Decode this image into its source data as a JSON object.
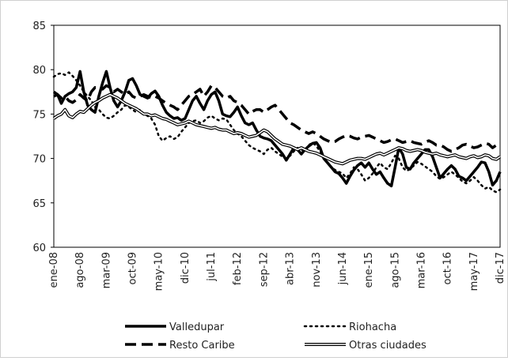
{
  "chart_data": {
    "type": "line",
    "categories": [
      "ene-08",
      null,
      null,
      null,
      null,
      null,
      null,
      "ago-08",
      null,
      null,
      null,
      null,
      null,
      null,
      "mar-09",
      null,
      null,
      null,
      null,
      null,
      null,
      "oct-09",
      null,
      null,
      null,
      null,
      null,
      null,
      "may-10",
      null,
      null,
      null,
      null,
      null,
      null,
      "dic-10",
      null,
      null,
      null,
      null,
      null,
      null,
      "jul-11",
      null,
      null,
      null,
      null,
      null,
      null,
      "feb-12",
      null,
      null,
      null,
      null,
      null,
      null,
      "sep-12",
      null,
      null,
      null,
      null,
      null,
      null,
      "abr-13",
      null,
      null,
      null,
      null,
      null,
      null,
      "nov-13",
      null,
      null,
      null,
      null,
      null,
      null,
      "jun-14",
      null,
      null,
      null,
      null,
      null,
      null,
      "ene-15",
      null,
      null,
      null,
      null,
      null,
      null,
      "ago-15",
      null,
      null,
      null,
      null,
      null,
      null,
      "mar-16",
      null,
      null,
      null,
      null,
      null,
      null,
      "oct-16",
      null,
      null,
      null,
      null,
      null,
      null,
      "may-17",
      null,
      null,
      null,
      null,
      null,
      null,
      "dic-17"
    ],
    "ylim": [
      60,
      85
    ],
    "yticks": [
      60,
      65,
      70,
      75,
      80,
      85
    ],
    "series": [
      {
        "name": "Valledupar",
        "color": "#000000",
        "style": "solid",
        "values": [
          77,
          77.2,
          76.2,
          77,
          77.3,
          77.5,
          78,
          79.8,
          77.5,
          76,
          75.5,
          75.2,
          77,
          78.5,
          79.8,
          78,
          76.5,
          75.8,
          76.5,
          77.5,
          78.8,
          79,
          78.2,
          77.2,
          77,
          76.8,
          77.3,
          77.6,
          77,
          76,
          75.2,
          74.8,
          74.5,
          74.6,
          74.3,
          74.5,
          75.5,
          76.5,
          77,
          76.2,
          75.5,
          76.5,
          77.2,
          77.5,
          76.5,
          75,
          74.8,
          74.7,
          75.2,
          75.8,
          74.8,
          74,
          73.8,
          74,
          73.2,
          72.5,
          72.3,
          72.2,
          72,
          71.5,
          71,
          70.5,
          69.8,
          70.5,
          71.2,
          71,
          70.5,
          71,
          71.4,
          71.7,
          71.8,
          71.2,
          70,
          69.5,
          69,
          68.5,
          68.3,
          67.8,
          67.2,
          68,
          68.7,
          69.2,
          69.5,
          69,
          69.5,
          68.8,
          68.2,
          68.5,
          67.8,
          67.2,
          66.9,
          69,
          71.2,
          70.5,
          69,
          68.8,
          69.5,
          70,
          70.5,
          71,
          71,
          70.2,
          69,
          67.8,
          68.3,
          68.8,
          69.2,
          68.8,
          68,
          67.8,
          67.5,
          68,
          68.5,
          69,
          69.6,
          69.5,
          68.5,
          67,
          67.5,
          68.5
        ]
      },
      {
        "name": "Riohacha",
        "color": "#000000",
        "style": "dotted",
        "values": [
          79.2,
          79.5,
          79.6,
          79.4,
          79.7,
          79.3,
          78.8,
          78.2,
          77.5,
          77,
          76.5,
          75.8,
          75.5,
          75,
          74.6,
          74.5,
          74.8,
          75.2,
          75.5,
          76,
          75.8,
          75.5,
          75.2,
          75.5,
          75,
          74.8,
          74.5,
          73.8,
          72.5,
          72,
          72.3,
          72.5,
          72.2,
          72.4,
          73,
          73.5,
          74,
          74.2,
          74.3,
          74,
          74.2,
          74.6,
          74.8,
          74.5,
          74.3,
          74.5,
          74.4,
          73.8,
          73.2,
          72.8,
          72.5,
          72,
          71.5,
          71.2,
          71,
          70.8,
          70.5,
          71,
          71.2,
          70.8,
          70.5,
          70.2,
          70,
          70.3,
          70.8,
          71.2,
          71,
          70.8,
          71.5,
          71.8,
          71.4,
          70.8,
          70.2,
          69.5,
          69,
          68.7,
          68.5,
          68.3,
          67.8,
          68.3,
          69,
          68.8,
          68.2,
          67.5,
          67.8,
          68.3,
          69,
          69.5,
          69,
          68.8,
          69.5,
          70.3,
          70,
          69,
          68.6,
          68.8,
          69.2,
          69.6,
          69.4,
          69.1,
          68.8,
          68.5,
          68,
          67.7,
          67.9,
          68.2,
          68.5,
          68.2,
          67.8,
          67.4,
          67.2,
          67.5,
          67.9,
          67.5,
          67,
          66.6,
          66.8,
          66.4,
          66.2,
          66.5
        ]
      },
      {
        "name": "Resto Caribe",
        "color": "#000000",
        "style": "dashed",
        "values": [
          77.5,
          77.2,
          76.8,
          77,
          76.5,
          76.3,
          76.6,
          77.2,
          76.8,
          76.5,
          77.5,
          78,
          78,
          77.8,
          78.2,
          78,
          77.5,
          77.8,
          77.5,
          77.2,
          77.5,
          77,
          76.8,
          77,
          77.2,
          77,
          76.8,
          77,
          76.8,
          76.5,
          76.2,
          76,
          75.8,
          75.5,
          76,
          76.5,
          77,
          77.2,
          77.5,
          77.8,
          77,
          77.5,
          78.2,
          78,
          77.5,
          77,
          76.8,
          77,
          76.5,
          76.3,
          76,
          75.5,
          75,
          75.3,
          75.5,
          75.5,
          75.2,
          75.5,
          75.8,
          76,
          75.5,
          75,
          74.5,
          74,
          73.8,
          73.5,
          73.2,
          73,
          72.8,
          73,
          72.8,
          72.5,
          72.2,
          72,
          71.8,
          71.9,
          72.2,
          72.4,
          72.6,
          72.5,
          72.3,
          72.2,
          72.4,
          72.5,
          72.6,
          72.4,
          72.2,
          72,
          71.8,
          71.9,
          72.1,
          72.2,
          72,
          71.8,
          71.9,
          72,
          71.8,
          71.7,
          71.6,
          71.8,
          72,
          71.8,
          71.5,
          71.5,
          71.3,
          71,
          70.8,
          71,
          71.2,
          71.5,
          71.6,
          71.4,
          71.2,
          71.3,
          71.5,
          71.7,
          71.6,
          71.2,
          71.5,
          71.8
        ]
      },
      {
        "name": "Otras ciudades",
        "color": "#000000",
        "style": "double",
        "values": [
          74.5,
          74.8,
          75,
          75.5,
          74.8,
          74.6,
          75,
          75.3,
          75.2,
          75.6,
          76,
          76.3,
          76.5,
          76.8,
          77,
          77.2,
          77,
          76.8,
          76.5,
          76.2,
          76,
          75.8,
          75.6,
          75.3,
          75,
          75,
          74.8,
          74.9,
          74.7,
          74.5,
          74.4,
          74.2,
          74,
          73.8,
          73.9,
          74,
          74.2,
          74,
          73.8,
          73.7,
          73.6,
          73.5,
          73.4,
          73.5,
          73.3,
          73.2,
          73.2,
          73,
          72.8,
          72.9,
          72.8,
          72.6,
          72.4,
          72.5,
          72.6,
          72.9,
          73.2,
          73,
          72.6,
          72.2,
          71.9,
          71.6,
          71.5,
          71.4,
          71.2,
          71,
          71.2,
          71,
          70.8,
          70.7,
          70.6,
          70.4,
          70.2,
          70,
          69.8,
          69.6,
          69.5,
          69.4,
          69.6,
          69.8,
          69.9,
          70,
          70,
          69.9,
          70.1,
          70.3,
          70.5,
          70.6,
          70.4,
          70.6,
          70.8,
          71,
          71.2,
          71.1,
          70.9,
          70.8,
          70.9,
          71,
          70.9,
          70.7,
          70.6,
          70.5,
          70.6,
          70.4,
          70.3,
          70.2,
          70.3,
          70.4,
          70.2,
          70.1,
          70,
          70.2,
          70.3,
          70.1,
          70.2,
          70.4,
          70.3,
          70,
          69.9,
          70.2
        ]
      }
    ]
  }
}
